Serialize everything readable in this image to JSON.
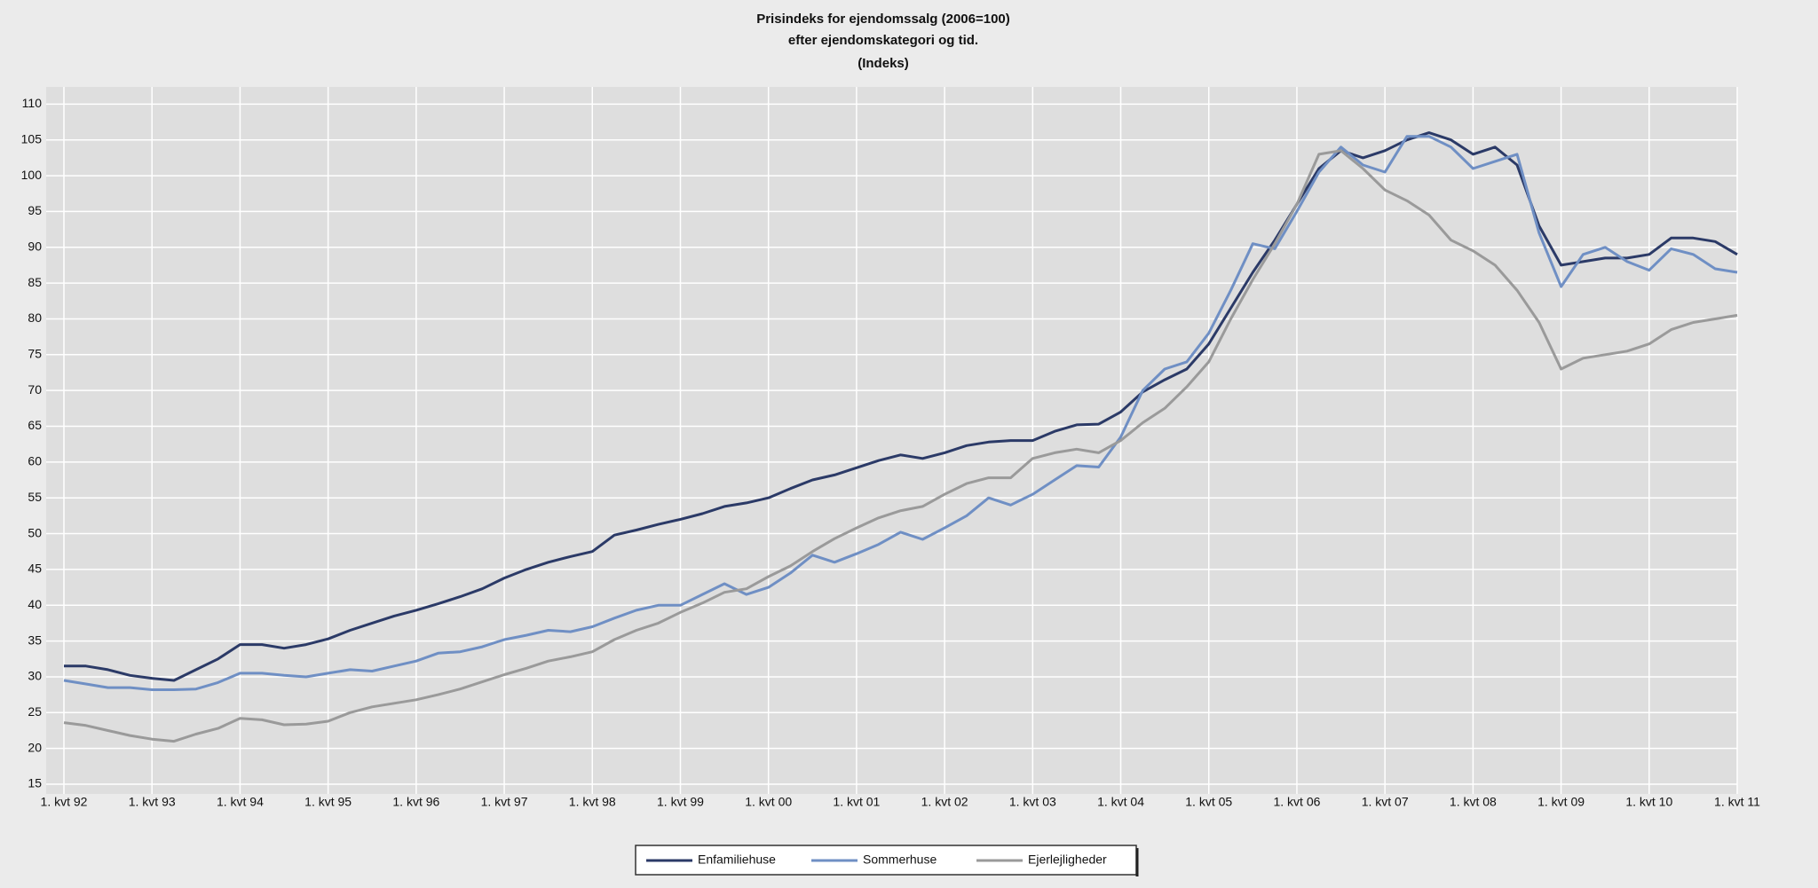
{
  "chart_data": {
    "type": "line",
    "title": [
      "Prisindeks for ejendomssalg (2006=100)",
      "efter ejendomskategori og tid.",
      "(Indeks)"
    ],
    "categories": [
      "1. kvt 92",
      null,
      null,
      null,
      "1. kvt 93",
      null,
      null,
      null,
      "1. kvt 94",
      null,
      null,
      null,
      "1. kvt 95",
      null,
      null,
      null,
      "1. kvt 96",
      null,
      null,
      null,
      "1. kvt 97",
      null,
      null,
      null,
      "1. kvt 98",
      null,
      null,
      null,
      "1. kvt 99",
      null,
      null,
      null,
      "1. kvt 00",
      null,
      null,
      null,
      "1. kvt 01",
      null,
      null,
      null,
      "1. kvt 02",
      null,
      null,
      null,
      "1. kvt 03",
      null,
      null,
      null,
      "1. kvt 04",
      null,
      null,
      null,
      "1. kvt 05",
      null,
      null,
      null,
      "1. kvt 06",
      null,
      null,
      null,
      "1. kvt 07",
      null,
      null,
      null,
      "1. kvt 08",
      null,
      null,
      null,
      "1. kvt 09",
      null,
      null,
      null,
      "1. kvt 10",
      null,
      null,
      null,
      "1. kvt 11"
    ],
    "series": [
      {
        "name": "Enfamiliehuse",
        "color": "#2b3a67",
        "values": [
          31.5,
          31.5,
          31,
          30.2,
          29.8,
          29.5,
          31,
          32.5,
          34.5,
          34.5,
          34,
          34.5,
          35.3,
          36.5,
          37.5,
          38.5,
          39.3,
          40.2,
          41.2,
          42.3,
          43.8,
          45,
          46,
          46.8,
          47.5,
          49.8,
          50.5,
          51.3,
          52,
          52.8,
          53.8,
          54.3,
          55,
          56.3,
          57.5,
          58.2,
          59.2,
          60.2,
          61,
          60.5,
          61.3,
          62.3,
          62.8,
          63,
          63,
          64.3,
          65.2,
          65.3,
          67,
          69.8,
          71.5,
          73,
          76.5,
          81.5,
          86.5,
          91,
          96,
          101,
          103.5,
          102.5,
          103.5,
          105,
          106,
          105,
          103,
          104,
          101.5,
          93,
          87.5,
          88,
          88.5,
          88.5,
          89,
          91.3,
          91.3,
          90.8,
          89
        ]
      },
      {
        "name": "Sommerhuse",
        "color": "#6f8fc4",
        "values": [
          29.5,
          29,
          28.5,
          28.5,
          28.2,
          28.2,
          28.3,
          29.2,
          30.5,
          30.5,
          30.2,
          30,
          30.5,
          31,
          30.8,
          31.5,
          32.2,
          33.3,
          33.5,
          34.2,
          35.2,
          35.8,
          36.5,
          36.3,
          37,
          38.2,
          39.3,
          40,
          40,
          41.5,
          43,
          41.5,
          42.5,
          44.5,
          47,
          46,
          47.2,
          48.5,
          50.2,
          49.2,
          50.8,
          52.5,
          55,
          54,
          55.5,
          57.5,
          59.5,
          59.3,
          63.5,
          70,
          73,
          74,
          78,
          84,
          90.5,
          89.8,
          95,
          100.5,
          104,
          101.5,
          100.5,
          105.5,
          105.5,
          104,
          101,
          102,
          103,
          92,
          84.5,
          89,
          90,
          88,
          86.8,
          89.8,
          89,
          87,
          86.5
        ]
      },
      {
        "name": "Ejerlejligheder",
        "color": "#9a9a9a",
        "values": [
          23.6,
          23.2,
          22.5,
          21.8,
          21.3,
          21,
          22,
          22.8,
          24.2,
          24,
          23.3,
          23.4,
          23.8,
          25,
          25.8,
          26.3,
          26.8,
          27.5,
          28.3,
          29.3,
          30.3,
          31.2,
          32.2,
          32.8,
          33.5,
          35.2,
          36.5,
          37.5,
          39,
          40.3,
          41.8,
          42.3,
          44,
          45.5,
          47.5,
          49.3,
          50.8,
          52.2,
          53.2,
          53.8,
          55.5,
          57,
          57.8,
          57.8,
          60.5,
          61.3,
          61.8,
          61.3,
          63,
          65.5,
          67.5,
          70.5,
          74,
          80,
          85.5,
          90.5,
          96,
          103,
          103.5,
          101,
          98,
          96.5,
          94.5,
          91,
          89.5,
          87.5,
          84,
          79.5,
          73,
          74.5,
          75,
          75.5,
          76.5,
          78.5,
          79.5,
          80,
          80.5
        ]
      }
    ],
    "ylim": [
      15,
      112.4
    ],
    "yticks": [
      15,
      20,
      25,
      30,
      35,
      40,
      45,
      50,
      55,
      60,
      65,
      70,
      75,
      80,
      85,
      90,
      95,
      100,
      105,
      110
    ],
    "grid": true,
    "legend": "bottom"
  }
}
